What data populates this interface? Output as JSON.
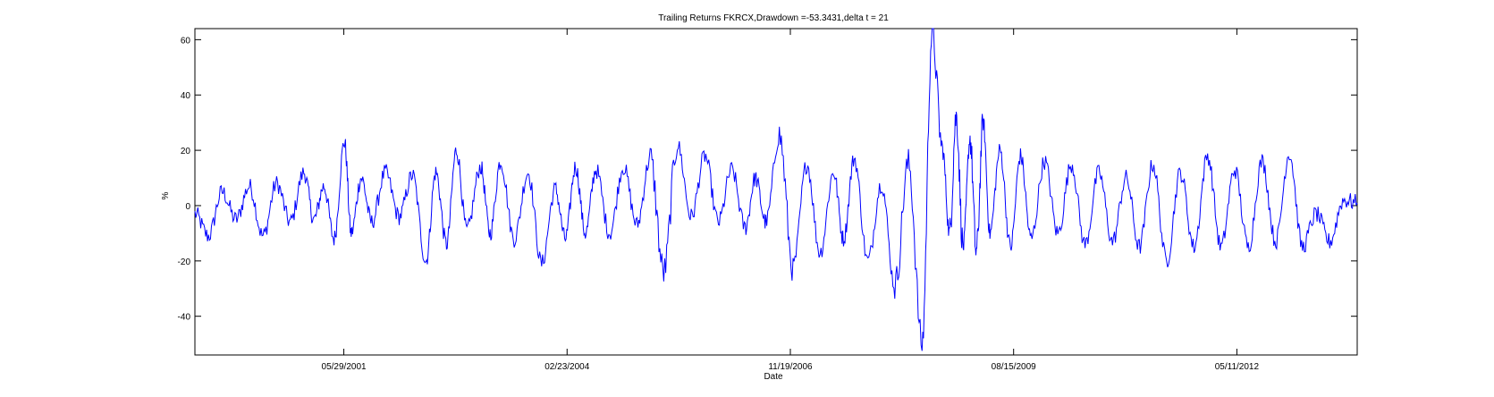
{
  "chart_data": {
    "type": "line",
    "title": "Trailing Returns FKRCX,Drawdown =-53.3431,delta t = 21",
    "xlabel": "Date",
    "ylabel": "%",
    "x_tick_labels": [
      "05/29/2001",
      "02/23/2004",
      "11/19/2006",
      "08/15/2009",
      "05/11/2012"
    ],
    "x_range": [
      "08/01/1999",
      "11/01/2013"
    ],
    "y_ticks": [
      -40,
      -20,
      0,
      20,
      40,
      60
    ],
    "ylim": [
      -54,
      64
    ],
    "grid": false,
    "legend": "none",
    "series": [
      {
        "color": "#0000ff",
        "x": [
          "1999-08-01",
          "1999-10-01",
          "1999-12-01",
          "2000-02-01",
          "2000-04-01",
          "2000-06-01",
          "2000-08-01",
          "2000-10-01",
          "2000-12-01",
          "2001-01-15",
          "2001-03-01",
          "2001-04-15",
          "2001-06-01",
          "2001-07-01",
          "2001-08-15",
          "2001-10-01",
          "2001-12-01",
          "2002-02-01",
          "2002-04-01",
          "2002-06-01",
          "2002-07-15",
          "2002-09-01",
          "2002-10-15",
          "2002-12-01",
          "2003-02-01",
          "2003-03-15",
          "2003-05-01",
          "2003-07-01",
          "2003-09-01",
          "2003-11-01",
          "2004-01-01",
          "2004-02-15",
          "2004-04-01",
          "2004-05-15",
          "2004-07-01",
          "2004-09-01",
          "2004-11-01",
          "2005-01-01",
          "2005-03-01",
          "2005-05-01",
          "2005-07-01",
          "2005-09-01",
          "2005-11-01",
          "2006-01-01",
          "2006-03-01",
          "2006-05-01",
          "2006-06-15",
          "2006-08-01",
          "2006-10-01",
          "2006-12-01",
          "2007-02-01",
          "2007-04-01",
          "2007-06-01",
          "2007-07-15",
          "2007-09-01",
          "2007-11-01",
          "2008-01-01",
          "2008-03-01",
          "2008-05-01",
          "2008-07-01",
          "2008-08-15",
          "2008-10-01",
          "2008-11-01",
          "2008-12-01",
          "2009-01-01",
          "2009-02-01",
          "2009-03-01",
          "2009-04-01",
          "2009-05-01",
          "2009-06-15",
          "2009-08-01",
          "2009-09-15",
          "2009-11-01",
          "2010-01-01",
          "2010-03-01",
          "2010-05-01",
          "2010-07-01",
          "2010-09-01",
          "2010-11-01",
          "2011-01-01",
          "2011-03-01",
          "2011-05-01",
          "2011-07-01",
          "2011-09-01",
          "2011-11-01",
          "2012-01-01",
          "2012-03-01",
          "2012-05-01",
          "2012-07-01",
          "2012-09-01",
          "2012-11-01",
          "2013-01-01",
          "2013-03-01",
          "2013-05-01",
          "2013-07-01",
          "2013-09-01",
          "2013-11-01"
        ],
        "y": [
          -3,
          -11,
          5,
          -5,
          7,
          -11,
          8,
          -6,
          12,
          -5,
          7,
          -12,
          23,
          -10,
          10,
          -6,
          12,
          -4,
          11,
          -20,
          12,
          -14,
          20,
          -9,
          14,
          -10,
          16,
          -12,
          12,
          -21,
          6,
          -12,
          14,
          -10,
          13,
          -10,
          14,
          -7,
          17,
          -24,
          22,
          -4,
          18,
          -6,
          13,
          -8,
          10,
          -6,
          25,
          -22,
          15,
          -17,
          12,
          -12,
          17,
          -20,
          8,
          -29,
          15,
          -50,
          62,
          20,
          -10,
          32,
          -15,
          24,
          -17,
          30,
          -10,
          20,
          -15,
          18,
          -12,
          16,
          -10,
          15,
          -14,
          12,
          -13,
          10,
          -15,
          15,
          -20,
          12,
          -15,
          18,
          -15,
          13,
          -15,
          16,
          -13,
          19,
          -15,
          -3,
          -13,
          2,
          1
        ]
      }
    ]
  }
}
